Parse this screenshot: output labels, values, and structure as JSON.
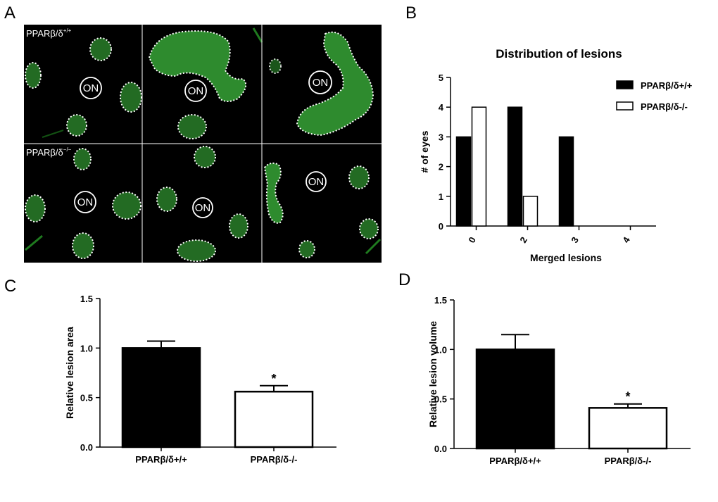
{
  "panels": {
    "A": {
      "letter": "A",
      "row_labels": {
        "wt": {
          "base": "PPARβ/δ",
          "sup": "+/+"
        },
        "ko": {
          "base": "PPARβ/δ",
          "sup": "−/−"
        }
      },
      "optic_nerve_label": "ON",
      "lesion_color": "#2e8b2e",
      "background_color": "#000000"
    },
    "B": {
      "letter": "B"
    },
    "C": {
      "letter": "C"
    },
    "D": {
      "letter": "D"
    }
  },
  "chart_data": [
    {
      "id": "B",
      "type": "bar",
      "title": "Distribution of lesions",
      "xlabel": "Merged lesions",
      "ylabel": "# of eyes",
      "categories": [
        "0",
        "2",
        "3",
        "4"
      ],
      "series": [
        {
          "name": "PPARβ/δ+/+",
          "values": [
            3,
            4,
            3,
            0
          ],
          "fill": "#000000"
        },
        {
          "name": "PPARβ/δ-/-",
          "values": [
            4,
            1,
            0,
            0
          ],
          "fill": "#ffffff"
        }
      ],
      "ylim": [
        0,
        5
      ],
      "yticks": [
        "0",
        "1",
        "2",
        "3",
        "4",
        "5"
      ],
      "legend_position": "top-right",
      "grid": false
    },
    {
      "id": "C",
      "type": "bar",
      "xlabel": "",
      "ylabel": "Relative lesion area",
      "categories": [
        "PPARβ/δ+/+",
        "PPARβ/δ-/-"
      ],
      "values": [
        1.0,
        0.56
      ],
      "errors": [
        0.07,
        0.06
      ],
      "fills": [
        "#000000",
        "#ffffff"
      ],
      "annotations": [
        "",
        "*"
      ],
      "ylim": [
        0,
        1.5
      ],
      "yticks": [
        "0.0",
        "0.5",
        "1.0",
        "1.5"
      ],
      "grid": false
    },
    {
      "id": "D",
      "type": "bar",
      "xlabel": "",
      "ylabel": "Relative lesion volume",
      "categories": [
        "PPARβ/δ+/+",
        "PPARβ/δ-/-"
      ],
      "values": [
        1.0,
        0.41
      ],
      "errors": [
        0.15,
        0.04
      ],
      "fills": [
        "#000000",
        "#ffffff"
      ],
      "annotations": [
        "",
        "*"
      ],
      "ylim": [
        0,
        1.5
      ],
      "yticks": [
        "0.0",
        "0.5",
        "1.0",
        "1.5"
      ],
      "grid": false
    }
  ]
}
